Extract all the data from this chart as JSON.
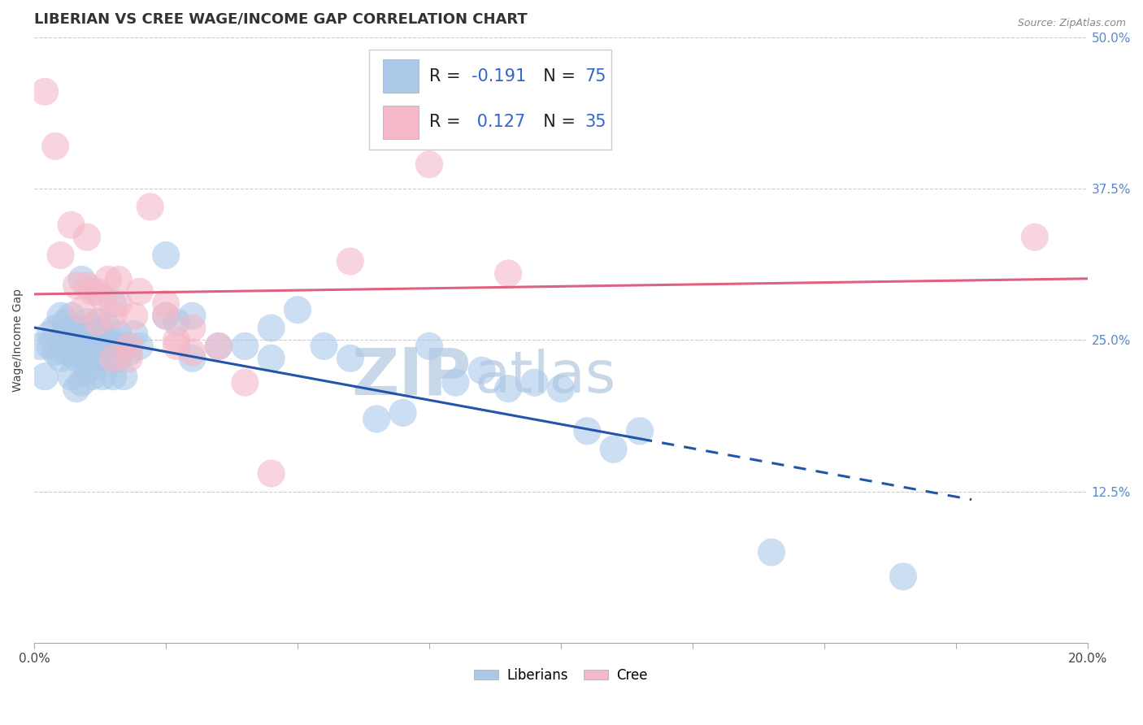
{
  "title": "LIBERIAN VS CREE WAGE/INCOME GAP CORRELATION CHART",
  "source_text": "Source: ZipAtlas.com",
  "ylabel": "Wage/Income Gap",
  "xlim": [
    0.0,
    0.2
  ],
  "ylim": [
    0.0,
    0.5
  ],
  "yticks": [
    0.0,
    0.125,
    0.25,
    0.375,
    0.5
  ],
  "ytick_labels": [
    "",
    "12.5%",
    "25.0%",
    "37.5%",
    "50.0%"
  ],
  "xticks": [
    0.0,
    0.025,
    0.05,
    0.075,
    0.1,
    0.125,
    0.15,
    0.175,
    0.2
  ],
  "xtick_labels": [
    "0.0%",
    "",
    "",
    "",
    "",
    "",
    "",
    "",
    "20.0%"
  ],
  "liberian_color": "#aac8e8",
  "cree_color": "#f4b8c8",
  "liberian_line_color": "#2255aa",
  "cree_line_color": "#e06080",
  "R_liberian": -0.191,
  "N_liberian": 75,
  "R_cree": 0.127,
  "N_cree": 35,
  "watermark_zip": "ZIP",
  "watermark_atlas": "atlas",
  "background_color": "#ffffff",
  "grid_color": "#cccccc",
  "liberian_points": [
    [
      0.001,
      0.245
    ],
    [
      0.002,
      0.22
    ],
    [
      0.003,
      0.245
    ],
    [
      0.003,
      0.255
    ],
    [
      0.004,
      0.24
    ],
    [
      0.004,
      0.26
    ],
    [
      0.005,
      0.235
    ],
    [
      0.005,
      0.25
    ],
    [
      0.005,
      0.27
    ],
    [
      0.006,
      0.24
    ],
    [
      0.006,
      0.255
    ],
    [
      0.006,
      0.265
    ],
    [
      0.007,
      0.22
    ],
    [
      0.007,
      0.24
    ],
    [
      0.007,
      0.255
    ],
    [
      0.007,
      0.27
    ],
    [
      0.008,
      0.21
    ],
    [
      0.008,
      0.235
    ],
    [
      0.008,
      0.25
    ],
    [
      0.008,
      0.26
    ],
    [
      0.009,
      0.215
    ],
    [
      0.009,
      0.24
    ],
    [
      0.009,
      0.255
    ],
    [
      0.009,
      0.3
    ],
    [
      0.01,
      0.225
    ],
    [
      0.01,
      0.235
    ],
    [
      0.01,
      0.25
    ],
    [
      0.01,
      0.265
    ],
    [
      0.011,
      0.22
    ],
    [
      0.011,
      0.245
    ],
    [
      0.011,
      0.26
    ],
    [
      0.012,
      0.235
    ],
    [
      0.012,
      0.25
    ],
    [
      0.012,
      0.265
    ],
    [
      0.013,
      0.22
    ],
    [
      0.013,
      0.245
    ],
    [
      0.013,
      0.255
    ],
    [
      0.014,
      0.235
    ],
    [
      0.014,
      0.25
    ],
    [
      0.014,
      0.26
    ],
    [
      0.015,
      0.22
    ],
    [
      0.015,
      0.245
    ],
    [
      0.015,
      0.28
    ],
    [
      0.016,
      0.235
    ],
    [
      0.016,
      0.255
    ],
    [
      0.017,
      0.22
    ],
    [
      0.017,
      0.245
    ],
    [
      0.018,
      0.24
    ],
    [
      0.019,
      0.255
    ],
    [
      0.02,
      0.245
    ],
    [
      0.025,
      0.27
    ],
    [
      0.025,
      0.32
    ],
    [
      0.027,
      0.265
    ],
    [
      0.03,
      0.235
    ],
    [
      0.03,
      0.27
    ],
    [
      0.035,
      0.245
    ],
    [
      0.04,
      0.245
    ],
    [
      0.045,
      0.235
    ],
    [
      0.045,
      0.26
    ],
    [
      0.05,
      0.275
    ],
    [
      0.055,
      0.245
    ],
    [
      0.06,
      0.235
    ],
    [
      0.065,
      0.185
    ],
    [
      0.07,
      0.19
    ],
    [
      0.075,
      0.245
    ],
    [
      0.08,
      0.215
    ],
    [
      0.085,
      0.225
    ],
    [
      0.09,
      0.21
    ],
    [
      0.095,
      0.215
    ],
    [
      0.1,
      0.21
    ],
    [
      0.105,
      0.175
    ],
    [
      0.11,
      0.16
    ],
    [
      0.115,
      0.175
    ],
    [
      0.14,
      0.075
    ],
    [
      0.165,
      0.055
    ]
  ],
  "cree_points": [
    [
      0.002,
      0.455
    ],
    [
      0.004,
      0.41
    ],
    [
      0.005,
      0.32
    ],
    [
      0.007,
      0.345
    ],
    [
      0.008,
      0.295
    ],
    [
      0.009,
      0.275
    ],
    [
      0.01,
      0.295
    ],
    [
      0.01,
      0.335
    ],
    [
      0.011,
      0.29
    ],
    [
      0.012,
      0.265
    ],
    [
      0.012,
      0.29
    ],
    [
      0.013,
      0.285
    ],
    [
      0.014,
      0.3
    ],
    [
      0.015,
      0.235
    ],
    [
      0.015,
      0.27
    ],
    [
      0.016,
      0.28
    ],
    [
      0.016,
      0.3
    ],
    [
      0.018,
      0.235
    ],
    [
      0.018,
      0.245
    ],
    [
      0.019,
      0.27
    ],
    [
      0.02,
      0.29
    ],
    [
      0.022,
      0.36
    ],
    [
      0.025,
      0.27
    ],
    [
      0.025,
      0.28
    ],
    [
      0.027,
      0.245
    ],
    [
      0.027,
      0.25
    ],
    [
      0.03,
      0.24
    ],
    [
      0.03,
      0.26
    ],
    [
      0.035,
      0.245
    ],
    [
      0.04,
      0.215
    ],
    [
      0.045,
      0.14
    ],
    [
      0.06,
      0.315
    ],
    [
      0.075,
      0.395
    ],
    [
      0.09,
      0.305
    ],
    [
      0.19,
      0.335
    ]
  ],
  "lib_trend_solid_end": 0.115,
  "lib_trend_dash_end": 0.178,
  "title_fontsize": 13,
  "axis_label_fontsize": 10,
  "tick_fontsize": 11,
  "legend_fontsize": 15,
  "watermark_fontsize_zip": 58,
  "watermark_fontsize_atlas": 52,
  "watermark_color": "#c8d8e8",
  "marker_size": 11,
  "marker_alpha": 0.6,
  "line_width": 2.2
}
